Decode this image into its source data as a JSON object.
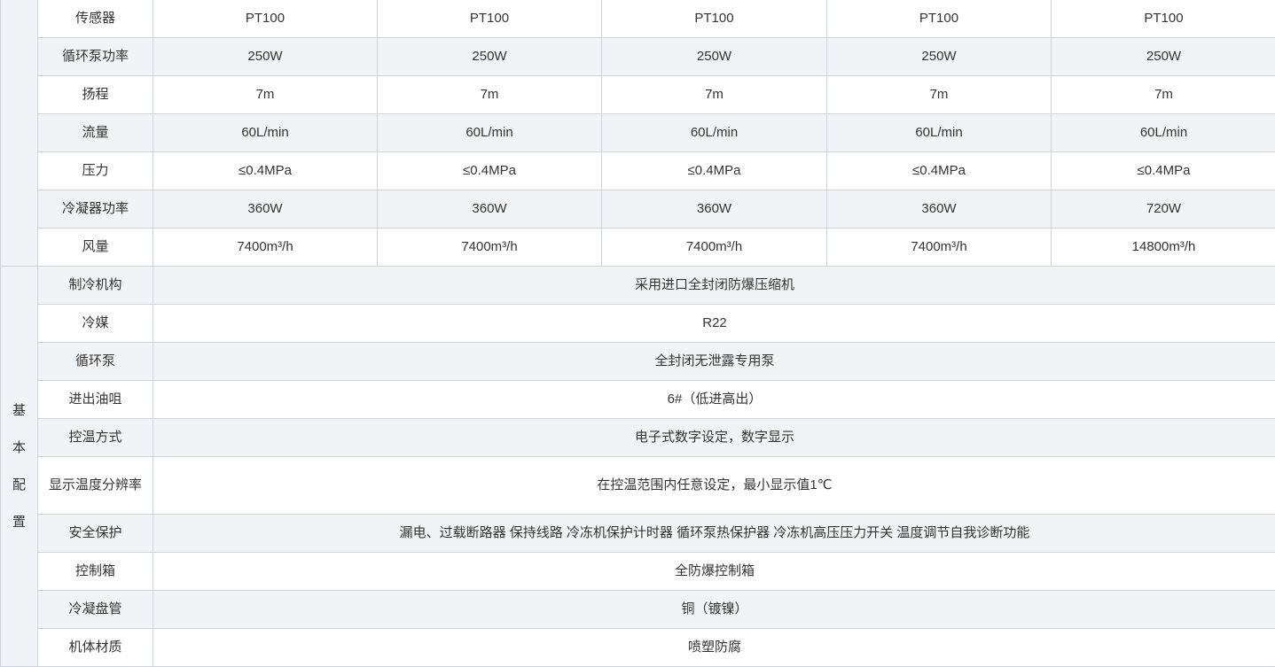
{
  "top_rows": [
    {
      "label": "传感器",
      "values": [
        "PT100",
        "PT100",
        "PT100",
        "PT100",
        "PT100"
      ]
    },
    {
      "label": "循环泵功率",
      "values": [
        "250W",
        "250W",
        "250W",
        "250W",
        "250W"
      ]
    },
    {
      "label": "扬程",
      "values": [
        "7m",
        "7m",
        "7m",
        "7m",
        "7m"
      ]
    },
    {
      "label": "流量",
      "values": [
        "60L/min",
        "60L/min",
        "60L/min",
        "60L/min",
        "60L/min"
      ]
    },
    {
      "label": "压力",
      "values": [
        "≤0.4MPa",
        "≤0.4MPa",
        "≤0.4MPa",
        "≤0.4MPa",
        "≤0.4MPa"
      ]
    },
    {
      "label": "冷凝器功率",
      "values": [
        "360W",
        "360W",
        "360W",
        "360W",
        "720W"
      ]
    },
    {
      "label": "风量",
      "values": [
        "7400m³/h",
        "7400m³/h",
        "7400m³/h",
        "7400m³/h",
        "14800m³/h"
      ]
    }
  ],
  "basic_group": {
    "chars": [
      "基",
      "本",
      "配",
      "置"
    ]
  },
  "basic_rows": [
    {
      "label": "制冷机构",
      "value": "采用进口全封闭防爆压缩机"
    },
    {
      "label": "冷媒",
      "value": "R22"
    },
    {
      "label": "循环泵",
      "value": "全封闭无泄露专用泵"
    },
    {
      "label": "进出油咀",
      "value": "6#（低进高出）"
    },
    {
      "label": "控温方式",
      "value": "电子式数字设定，数字显示"
    },
    {
      "label": "显示温度分辨率",
      "value": "在控温范围内任意设定，最小显示值1℃"
    },
    {
      "label": "安全保护",
      "value": "漏电、过载断路器 保持线路 冷冻机保护计时器 循环泵热保护器  冷冻机高压压力开关 温度调节自我诊断功能"
    },
    {
      "label": "控制箱",
      "value": "全防爆控制箱"
    },
    {
      "label": "冷凝盘管",
      "value": "铜（镀镍）"
    },
    {
      "label": "机体材质",
      "value": "喷塑防腐"
    }
  ]
}
